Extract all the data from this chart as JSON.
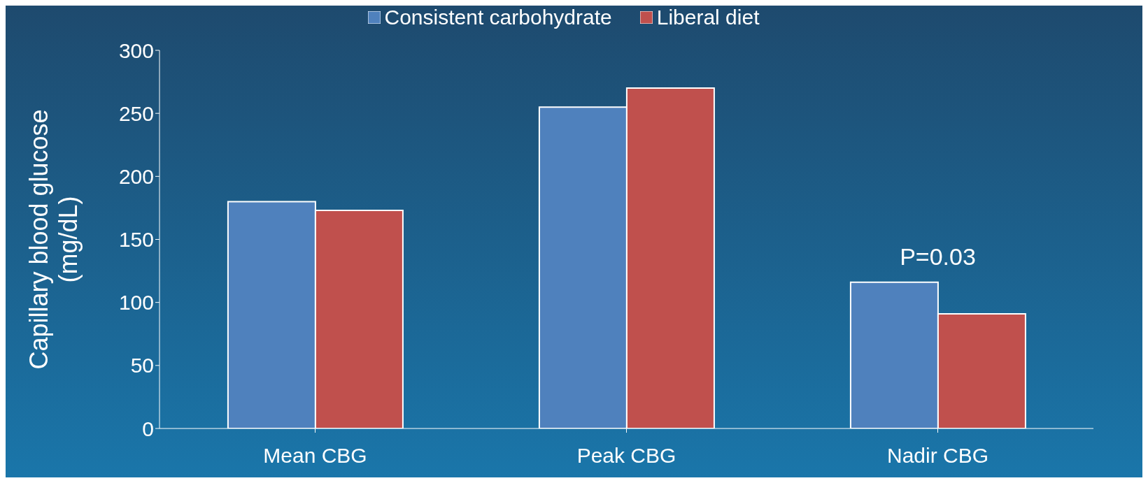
{
  "chart_data": {
    "type": "bar",
    "ylabel": "Capillary blood glucose\n(mg/dL)",
    "categories": [
      "Mean CBG",
      "Peak CBG",
      "Nadir CBG"
    ],
    "series": [
      {
        "name": "Consistent carbohydrate",
        "color": "#4f81bd",
        "values": [
          180,
          255,
          116
        ]
      },
      {
        "name": "Liberal diet",
        "color": "#c0504d",
        "values": [
          173,
          270,
          91
        ]
      }
    ],
    "ylim": [
      0,
      300
    ],
    "yticks": [
      0,
      50,
      100,
      150,
      200,
      250,
      300
    ],
    "legend": "top",
    "annotations": [
      {
        "text": "P=0.03",
        "x": "Nadir CBG",
        "y": 116
      }
    ]
  }
}
